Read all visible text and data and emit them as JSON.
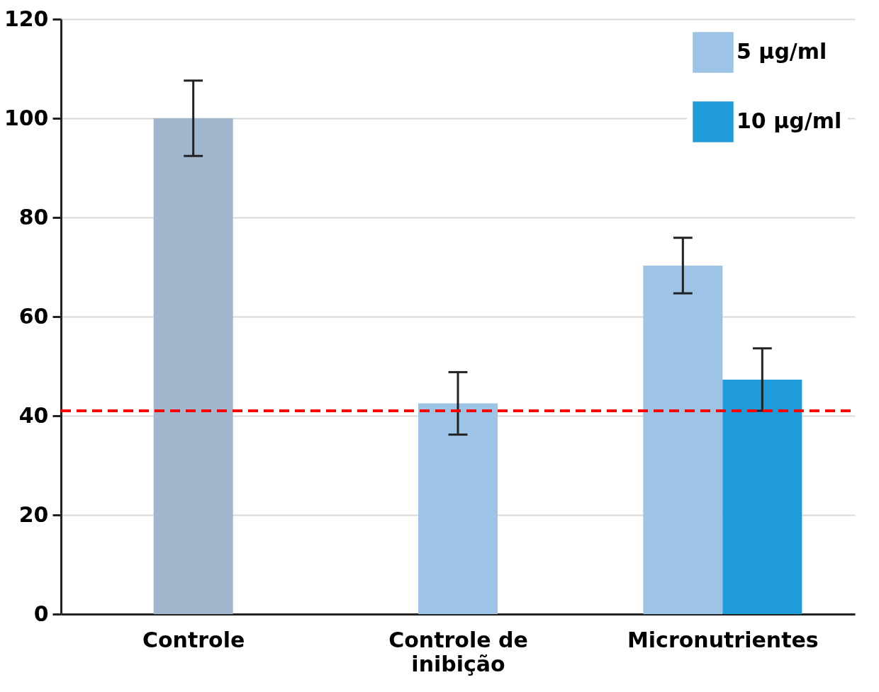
{
  "chart_data": {
    "type": "bar",
    "categories": [
      "Controle",
      "Controle de inibição",
      "Micronutrientes"
    ],
    "series": [
      {
        "color": "#9fb6cc",
        "values": [
          100,
          null,
          null
        ],
        "errors": [
          7.6,
          null,
          null
        ]
      },
      {
        "name": "5 µg/ml",
        "color": "#9dc3e6",
        "values": [
          null,
          42.5,
          70.3
        ],
        "errors": [
          null,
          6.3,
          5.6
        ]
      },
      {
        "name": "10 µg/ml",
        "color": "#1f9bd9",
        "values": [
          null,
          null,
          47.3
        ],
        "errors": [
          null,
          null,
          6.3
        ]
      }
    ],
    "ylim": [
      0,
      120
    ],
    "yticks": [
      0,
      20,
      40,
      60,
      80,
      100,
      120
    ],
    "grid": "y",
    "legend": "top right",
    "ref_lines": [
      {
        "axis": "y",
        "value": 41,
        "color": "#ff0000",
        "line_style": "dashed"
      }
    ]
  }
}
